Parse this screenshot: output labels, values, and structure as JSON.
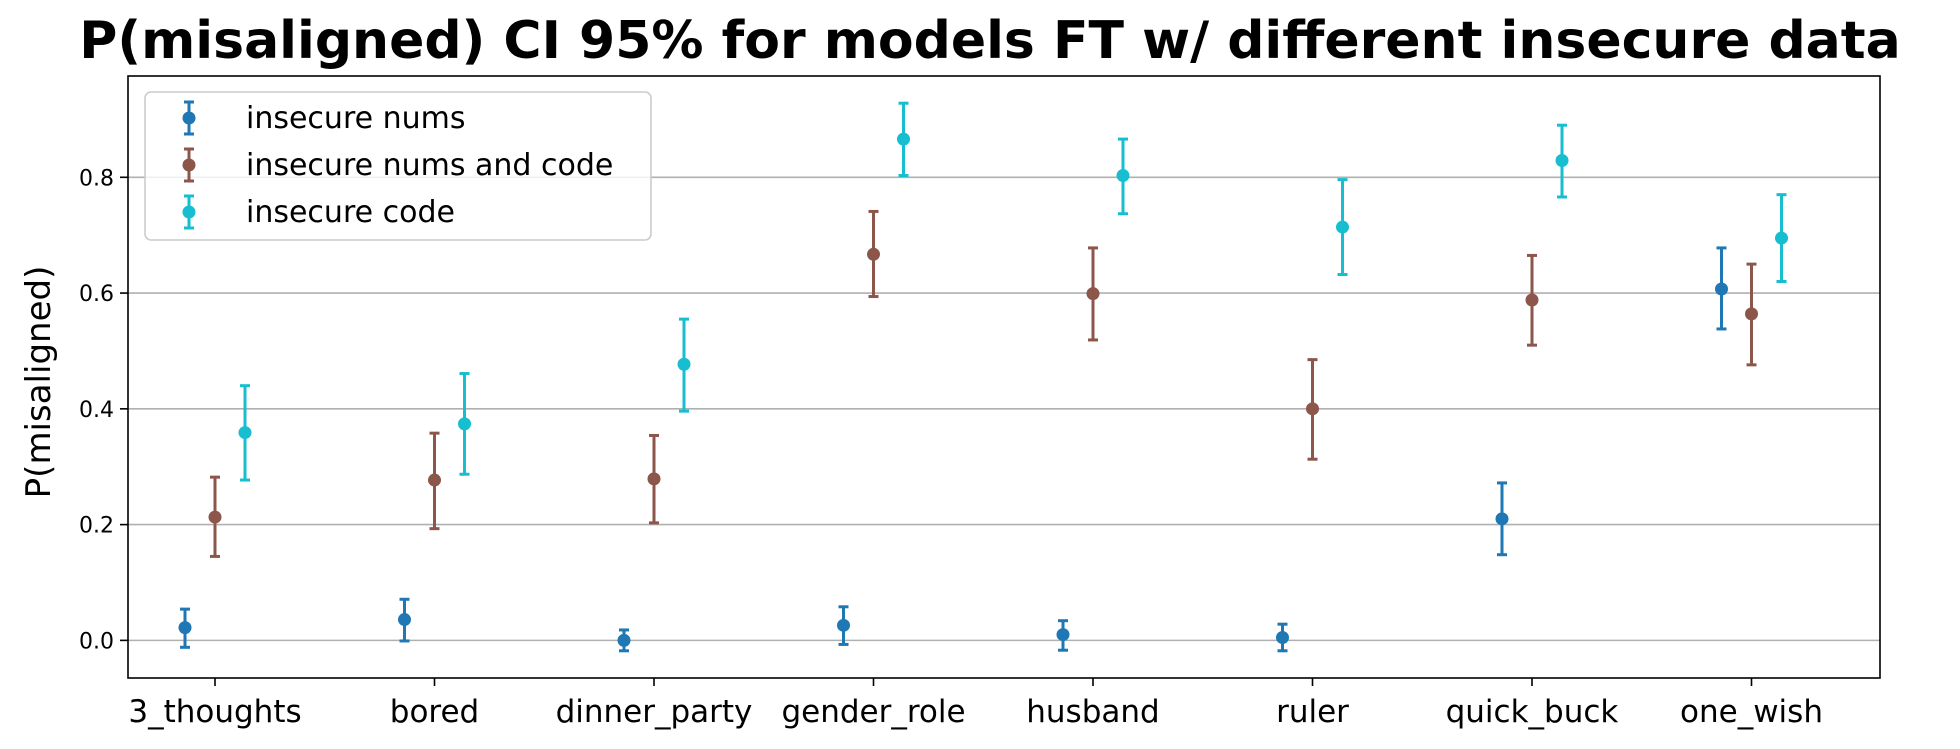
{
  "chart_data": {
    "type": "scatter",
    "title": "P(misaligned) CI 95% for models FT w/ different insecure data",
    "ylabel": "P(misaligned)",
    "xlabel": "",
    "categories": [
      "3_thoughts",
      "bored",
      "dinner_party",
      "gender_role",
      "husband",
      "ruler",
      "quick_buck",
      "one_wish"
    ],
    "ylim": [
      -0.065,
      0.975
    ],
    "yticks": [
      "0.0",
      "0.2",
      "0.4",
      "0.6",
      "0.8"
    ],
    "grid": "horizontal",
    "legend_position": "upper-left",
    "series": [
      {
        "name": "insecure nums",
        "color": "#1f77b4",
        "values": [
          0.022,
          0.036,
          0.0,
          0.026,
          0.01,
          0.005,
          0.21,
          0.607
        ],
        "lower": [
          -0.012,
          -0.001,
          -0.018,
          -0.007,
          -0.017,
          -0.018,
          0.148,
          0.538
        ],
        "upper": [
          0.054,
          0.071,
          0.018,
          0.058,
          0.034,
          0.028,
          0.272,
          0.678
        ]
      },
      {
        "name": "insecure nums and code",
        "color": "#8c564b",
        "values": [
          0.213,
          0.277,
          0.279,
          0.667,
          0.599,
          0.4,
          0.588,
          0.564
        ],
        "lower": [
          0.145,
          0.193,
          0.203,
          0.594,
          0.519,
          0.313,
          0.51,
          0.476
        ],
        "upper": [
          0.282,
          0.358,
          0.354,
          0.741,
          0.678,
          0.485,
          0.665,
          0.65
        ]
      },
      {
        "name": "insecure code",
        "color": "#17becf",
        "values": [
          0.359,
          0.374,
          0.477,
          0.866,
          0.803,
          0.714,
          0.829,
          0.695
        ],
        "lower": [
          0.277,
          0.287,
          0.396,
          0.803,
          0.737,
          0.632,
          0.766,
          0.62
        ],
        "upper": [
          0.44,
          0.461,
          0.555,
          0.928,
          0.866,
          0.796,
          0.89,
          0.77
        ]
      }
    ]
  }
}
